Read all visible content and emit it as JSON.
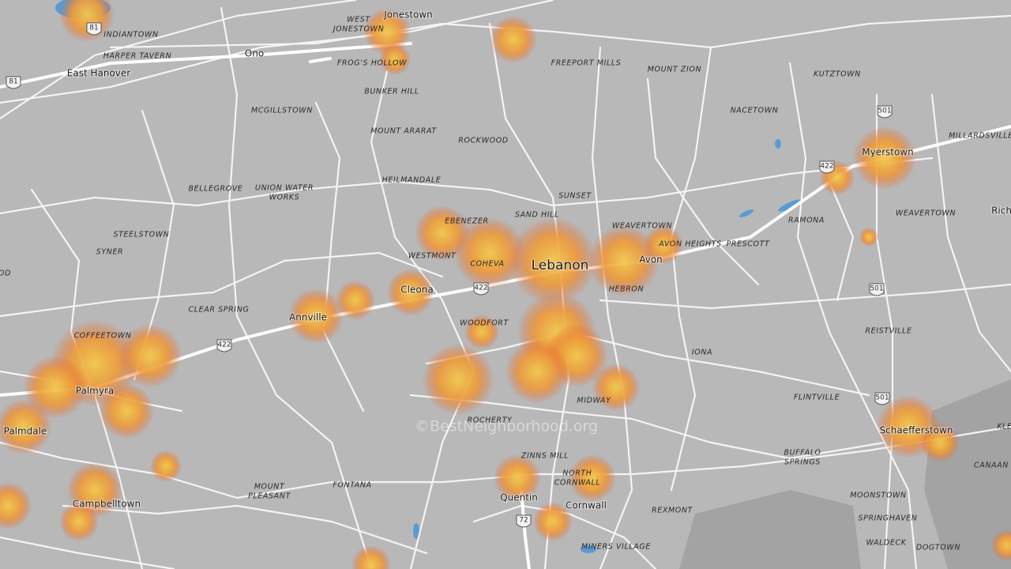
{
  "towns": [
    "Jonestown",
    "Ono",
    "East Hanover",
    "Myerstown",
    "Lebanon",
    "Cleona",
    "Annville",
    "Avon",
    "Palmyra",
    "Palmdale",
    "Campbelltown",
    "Quentin",
    "Cornwall",
    "Schaefferstown",
    "Rich"
  ],
  "neighborhoods": [
    [
      "WEST",
      "JONESTOWN"
    ],
    [
      "INDIANTOWN"
    ],
    [
      "HARPER TAVERN"
    ],
    [
      "FROG'S HOLLOW"
    ],
    [
      "FREEPORT MILLS"
    ],
    [
      "MOUNT ZION"
    ],
    [
      "KUTZTOWN"
    ],
    [
      "BUNKER HILL"
    ],
    [
      "MCGILLSTOWN"
    ],
    [
      "NACETOWN"
    ],
    [
      "MOUNT ARARAT"
    ],
    [
      "ROCKWOOD"
    ],
    [
      "MILLARDSVILLE"
    ],
    [
      "HEILMANDALE"
    ],
    [
      "BELLEGROVE"
    ],
    [
      "UNION WATER",
      "WORKS"
    ],
    [
      "SUNSET"
    ],
    [
      "WEAVERTOWN"
    ],
    [
      "RAMONA"
    ],
    [
      "SAND HILL"
    ],
    [
      "EBENEZER"
    ],
    [
      "WEAVERTOWN"
    ],
    [
      "STEELSTOWN"
    ],
    [
      "AVON HEIGHTS"
    ],
    [
      "PRESCOTT"
    ],
    [
      "WESTMONT"
    ],
    [
      "COHEVA"
    ],
    [
      "SYNER"
    ],
    [
      "OD"
    ],
    [
      "HEBRON"
    ],
    [
      "CLEAR SPRING"
    ],
    [
      "WOODFORT"
    ],
    [
      "REISTVILLE"
    ],
    [
      "COFFEETOWN"
    ],
    [
      "IONA"
    ],
    [
      "MIDWAY"
    ],
    [
      "FLINTVILLE"
    ],
    [
      "ROCHERTY"
    ],
    [
      "KLE"
    ],
    [
      "ZINNS MILL"
    ],
    [
      "BUFFALO",
      "SPRINGS"
    ],
    [
      "NORTH",
      "CORNWALL"
    ],
    [
      "CANAAN"
    ],
    [
      "MOUNT",
      "PLEASANT"
    ],
    [
      "FONTANA"
    ],
    [
      "MOONSTOWN"
    ],
    [
      "REXMONT"
    ],
    [
      "SPRINGHAVEN"
    ],
    [
      "MINERS VILLAGE"
    ],
    [
      "WALDECK"
    ],
    [
      "DOGTOWN"
    ]
  ],
  "shields": [
    "81",
    "81",
    "422",
    "422",
    "422",
    "501",
    "501",
    "501",
    "72"
  ],
  "watermark": "©BestNeighborhood.org"
}
